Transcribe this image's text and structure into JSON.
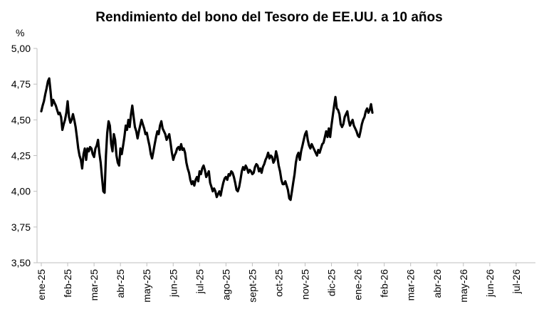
{
  "chart_data": {
    "type": "line",
    "title": "Rendimiento del bono del Tesoro de EE.UU. a 10 años",
    "y_unit": "%",
    "xlabel": "",
    "ylabel": "",
    "ylim": [
      3.5,
      5.0
    ],
    "y_ticks": [
      "5,00",
      "4,75",
      "4,50",
      "4,25",
      "4,00",
      "3,75",
      "3,50"
    ],
    "y_tick_values": [
      5.0,
      4.75,
      4.5,
      4.25,
      4.0,
      3.75,
      3.5
    ],
    "x_tick_labels": [
      "ene-25",
      "feb-25",
      "mar-25",
      "abr-25",
      "may-25",
      "jun-25",
      "jul-25",
      "ago-25",
      "sept-25",
      "oct-25",
      "nov-25",
      "dic-25",
      "ene-26",
      "feb-26",
      "mar-26",
      "abr-26",
      "may-26",
      "jun-26",
      "jul-26"
    ],
    "grid": false,
    "legend": "none",
    "line_color": "#000000",
    "axis_color": "#bfbfbf",
    "series": [
      {
        "x_month_fraction_note_excluded": null,
        "points": [
          [
            0.0,
            4.56
          ],
          [
            0.05,
            4.6
          ],
          [
            0.1,
            4.63
          ],
          [
            0.15,
            4.68
          ],
          [
            0.2,
            4.72
          ],
          [
            0.25,
            4.77
          ],
          [
            0.3,
            4.79
          ],
          [
            0.35,
            4.7
          ],
          [
            0.4,
            4.6
          ],
          [
            0.45,
            4.64
          ],
          [
            0.5,
            4.62
          ],
          [
            0.55,
            4.6
          ],
          [
            0.6,
            4.57
          ],
          [
            0.65,
            4.54
          ],
          [
            0.7,
            4.55
          ],
          [
            0.75,
            4.52
          ],
          [
            0.8,
            4.43
          ],
          [
            0.85,
            4.47
          ],
          [
            0.9,
            4.5
          ],
          [
            0.95,
            4.55
          ],
          [
            1.0,
            4.63
          ],
          [
            1.05,
            4.52
          ],
          [
            1.1,
            4.48
          ],
          [
            1.15,
            4.5
          ],
          [
            1.2,
            4.54
          ],
          [
            1.25,
            4.5
          ],
          [
            1.3,
            4.45
          ],
          [
            1.35,
            4.38
          ],
          [
            1.4,
            4.3
          ],
          [
            1.45,
            4.25
          ],
          [
            1.5,
            4.22
          ],
          [
            1.55,
            4.16
          ],
          [
            1.6,
            4.26
          ],
          [
            1.65,
            4.3
          ],
          [
            1.7,
            4.22
          ],
          [
            1.75,
            4.3
          ],
          [
            1.8,
            4.28
          ],
          [
            1.85,
            4.31
          ],
          [
            1.9,
            4.3
          ],
          [
            1.95,
            4.26
          ],
          [
            2.0,
            4.24
          ],
          [
            2.05,
            4.3
          ],
          [
            2.1,
            4.32
          ],
          [
            2.15,
            4.36
          ],
          [
            2.2,
            4.27
          ],
          [
            2.25,
            4.2
          ],
          [
            2.3,
            4.1
          ],
          [
            2.35,
            4.0
          ],
          [
            2.4,
            3.99
          ],
          [
            2.45,
            4.25
          ],
          [
            2.5,
            4.41
          ],
          [
            2.55,
            4.49
          ],
          [
            2.6,
            4.46
          ],
          [
            2.65,
            4.33
          ],
          [
            2.7,
            4.28
          ],
          [
            2.75,
            4.4
          ],
          [
            2.8,
            4.36
          ],
          [
            2.85,
            4.25
          ],
          [
            2.9,
            4.2
          ],
          [
            2.95,
            4.18
          ],
          [
            3.0,
            4.3
          ],
          [
            3.05,
            4.26
          ],
          [
            3.1,
            4.32
          ],
          [
            3.15,
            4.38
          ],
          [
            3.2,
            4.46
          ],
          [
            3.25,
            4.43
          ],
          [
            3.3,
            4.5
          ],
          [
            3.35,
            4.45
          ],
          [
            3.4,
            4.54
          ],
          [
            3.45,
            4.6
          ],
          [
            3.5,
            4.52
          ],
          [
            3.55,
            4.45
          ],
          [
            3.6,
            4.42
          ],
          [
            3.65,
            4.37
          ],
          [
            3.7,
            4.42
          ],
          [
            3.75,
            4.46
          ],
          [
            3.8,
            4.5
          ],
          [
            3.85,
            4.47
          ],
          [
            3.9,
            4.44
          ],
          [
            3.95,
            4.4
          ],
          [
            4.0,
            4.41
          ],
          [
            4.05,
            4.36
          ],
          [
            4.1,
            4.32
          ],
          [
            4.15,
            4.26
          ],
          [
            4.2,
            4.23
          ],
          [
            4.25,
            4.28
          ],
          [
            4.3,
            4.33
          ],
          [
            4.35,
            4.38
          ],
          [
            4.4,
            4.42
          ],
          [
            4.45,
            4.4
          ],
          [
            4.5,
            4.46
          ],
          [
            4.55,
            4.49
          ],
          [
            4.6,
            4.44
          ],
          [
            4.65,
            4.42
          ],
          [
            4.7,
            4.4
          ],
          [
            4.75,
            4.36
          ],
          [
            4.8,
            4.38
          ],
          [
            4.85,
            4.4
          ],
          [
            4.9,
            4.34
          ],
          [
            4.95,
            4.27
          ],
          [
            5.0,
            4.22
          ],
          [
            5.05,
            4.25
          ],
          [
            5.1,
            4.27
          ],
          [
            5.15,
            4.3
          ],
          [
            5.2,
            4.31
          ],
          [
            5.25,
            4.29
          ],
          [
            5.3,
            4.33
          ],
          [
            5.35,
            4.29
          ],
          [
            5.4,
            4.3
          ],
          [
            5.45,
            4.27
          ],
          [
            5.5,
            4.2
          ],
          [
            5.55,
            4.16
          ],
          [
            5.6,
            4.13
          ],
          [
            5.65,
            4.08
          ],
          [
            5.7,
            4.05
          ],
          [
            5.75,
            4.07
          ],
          [
            5.8,
            4.04
          ],
          [
            5.85,
            4.08
          ],
          [
            5.9,
            4.1
          ],
          [
            5.95,
            4.07
          ],
          [
            6.0,
            4.14
          ],
          [
            6.05,
            4.12
          ],
          [
            6.1,
            4.16
          ],
          [
            6.15,
            4.18
          ],
          [
            6.2,
            4.15
          ],
          [
            6.25,
            4.1
          ],
          [
            6.3,
            4.12
          ],
          [
            6.35,
            4.14
          ],
          [
            6.4,
            4.06
          ],
          [
            6.45,
            4.03
          ],
          [
            6.5,
            4.0
          ],
          [
            6.55,
            4.02
          ],
          [
            6.6,
            4.0
          ],
          [
            6.65,
            3.96
          ],
          [
            6.7,
            3.98
          ],
          [
            6.75,
            4.0
          ],
          [
            6.8,
            3.97
          ],
          [
            6.85,
            4.02
          ],
          [
            6.9,
            4.06
          ],
          [
            6.95,
            4.09
          ],
          [
            7.0,
            4.1
          ],
          [
            7.05,
            4.08
          ],
          [
            7.1,
            4.12
          ],
          [
            7.15,
            4.11
          ],
          [
            7.2,
            4.14
          ],
          [
            7.25,
            4.13
          ],
          [
            7.3,
            4.1
          ],
          [
            7.35,
            4.06
          ],
          [
            7.4,
            4.01
          ],
          [
            7.45,
            4.0
          ],
          [
            7.5,
            4.03
          ],
          [
            7.55,
            4.08
          ],
          [
            7.6,
            4.14
          ],
          [
            7.65,
            4.17
          ],
          [
            7.7,
            4.15
          ],
          [
            7.75,
            4.18
          ],
          [
            7.8,
            4.16
          ],
          [
            7.85,
            4.13
          ],
          [
            7.9,
            4.15
          ],
          [
            7.95,
            4.14
          ],
          [
            8.0,
            4.12
          ],
          [
            8.05,
            4.13
          ],
          [
            8.1,
            4.17
          ],
          [
            8.15,
            4.19
          ],
          [
            8.2,
            4.18
          ],
          [
            8.25,
            4.14
          ],
          [
            8.3,
            4.16
          ],
          [
            8.35,
            4.13
          ],
          [
            8.4,
            4.17
          ],
          [
            8.45,
            4.19
          ],
          [
            8.5,
            4.22
          ],
          [
            8.55,
            4.24
          ],
          [
            8.6,
            4.27
          ],
          [
            8.65,
            4.23
          ],
          [
            8.7,
            4.25
          ],
          [
            8.75,
            4.24
          ],
          [
            8.8,
            4.2
          ],
          [
            8.85,
            4.22
          ],
          [
            8.9,
            4.28
          ],
          [
            8.95,
            4.24
          ],
          [
            9.0,
            4.18
          ],
          [
            9.05,
            4.14
          ],
          [
            9.1,
            4.08
          ],
          [
            9.15,
            4.05
          ],
          [
            9.2,
            4.05
          ],
          [
            9.25,
            4.07
          ],
          [
            9.3,
            4.04
          ],
          [
            9.35,
            4.01
          ],
          [
            9.4,
            3.95
          ],
          [
            9.45,
            3.94
          ],
          [
            9.5,
            4.0
          ],
          [
            9.55,
            4.06
          ],
          [
            9.6,
            4.12
          ],
          [
            9.65,
            4.2
          ],
          [
            9.7,
            4.25
          ],
          [
            9.75,
            4.27
          ],
          [
            9.8,
            4.22
          ],
          [
            9.85,
            4.28
          ],
          [
            9.9,
            4.32
          ],
          [
            9.95,
            4.36
          ],
          [
            10.0,
            4.4
          ],
          [
            10.05,
            4.42
          ],
          [
            10.1,
            4.36
          ],
          [
            10.15,
            4.32
          ],
          [
            10.2,
            4.3
          ],
          [
            10.25,
            4.33
          ],
          [
            10.3,
            4.31
          ],
          [
            10.35,
            4.29
          ],
          [
            10.4,
            4.27
          ],
          [
            10.45,
            4.25
          ],
          [
            10.5,
            4.29
          ],
          [
            10.55,
            4.27
          ],
          [
            10.6,
            4.3
          ],
          [
            10.65,
            4.33
          ],
          [
            10.7,
            4.34
          ],
          [
            10.75,
            4.38
          ],
          [
            10.8,
            4.42
          ],
          [
            10.85,
            4.38
          ],
          [
            10.9,
            4.44
          ],
          [
            10.95,
            4.38
          ],
          [
            11.0,
            4.46
          ],
          [
            11.05,
            4.53
          ],
          [
            11.1,
            4.6
          ],
          [
            11.15,
            4.66
          ],
          [
            11.2,
            4.58
          ],
          [
            11.25,
            4.57
          ],
          [
            11.3,
            4.54
          ],
          [
            11.35,
            4.47
          ],
          [
            11.4,
            4.45
          ],
          [
            11.45,
            4.47
          ],
          [
            11.5,
            4.52
          ],
          [
            11.55,
            4.54
          ],
          [
            11.6,
            4.56
          ],
          [
            11.65,
            4.5
          ],
          [
            11.7,
            4.46
          ],
          [
            11.75,
            4.48
          ],
          [
            11.8,
            4.5
          ],
          [
            11.85,
            4.46
          ],
          [
            11.9,
            4.44
          ],
          [
            11.95,
            4.42
          ],
          [
            12.0,
            4.39
          ],
          [
            12.05,
            4.38
          ],
          [
            12.1,
            4.42
          ],
          [
            12.15,
            4.47
          ],
          [
            12.2,
            4.5
          ],
          [
            12.25,
            4.52
          ],
          [
            12.3,
            4.56
          ],
          [
            12.35,
            4.58
          ],
          [
            12.4,
            4.55
          ],
          [
            12.45,
            4.57
          ],
          [
            12.5,
            4.61
          ],
          [
            12.55,
            4.55
          ]
        ]
      }
    ]
  }
}
